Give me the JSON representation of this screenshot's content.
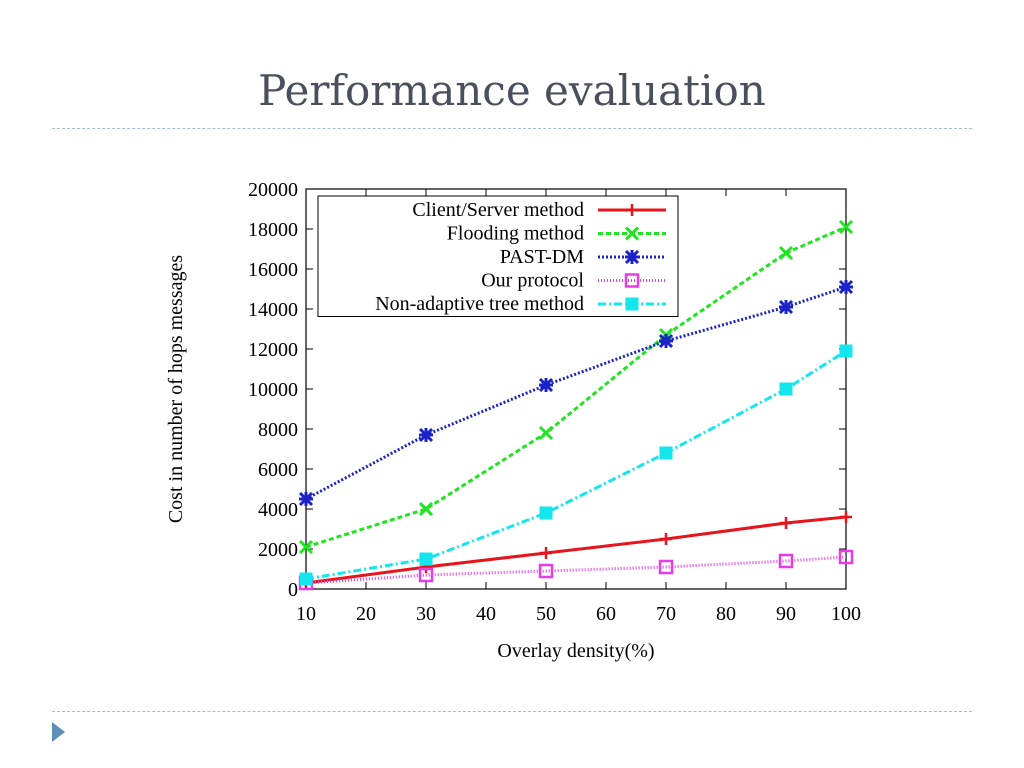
{
  "slide": {
    "title": "Performance evaluation"
  },
  "chart_data": {
    "type": "line",
    "title": "",
    "xlabel": "Overlay density(%)",
    "ylabel": "Cost in number of hops messages",
    "xlim": [
      10,
      100
    ],
    "ylim": [
      0,
      20000
    ],
    "xticks": [
      10,
      20,
      30,
      40,
      50,
      60,
      70,
      80,
      90,
      100
    ],
    "yticks": [
      0,
      2000,
      4000,
      6000,
      8000,
      10000,
      12000,
      14000,
      16000,
      18000,
      20000
    ],
    "x": [
      10,
      30,
      50,
      70,
      90,
      100
    ],
    "legend": "top-left",
    "grid": false,
    "series": [
      {
        "name": "Client/Server method",
        "values": [
          300,
          1100,
          1800,
          2500,
          3300,
          3600
        ],
        "color": "#e8141c",
        "dash": "",
        "marker": "plus"
      },
      {
        "name": "Flooding method",
        "values": [
          2100,
          4000,
          7800,
          12700,
          16800,
          18100
        ],
        "color": "#1ee61e",
        "dash": "5,3",
        "marker": "x"
      },
      {
        "name": "PAST-DM",
        "values": [
          4500,
          7700,
          10200,
          12400,
          14100,
          15100
        ],
        "color": "#1a22c8",
        "dash": "2,2",
        "marker": "star"
      },
      {
        "name": "Our protocol",
        "values": [
          300,
          700,
          900,
          1100,
          1400,
          1600
        ],
        "color": "#e63ce6",
        "dash": "1,2",
        "marker": "square-open"
      },
      {
        "name": "Non-adaptive tree method",
        "values": [
          500,
          1500,
          3800,
          6800,
          10000,
          11900
        ],
        "color": "#14e6ee",
        "dash": "8,3,2,3",
        "marker": "square-filled"
      }
    ]
  }
}
